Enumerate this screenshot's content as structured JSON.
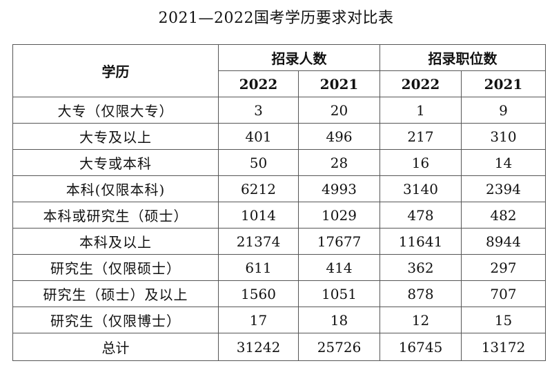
{
  "title": "2021—2022国考学历要求对比表",
  "headers": {
    "education": "学历",
    "group_hires": "招录人数",
    "group_positions": "招录职位数",
    "years": [
      "2022",
      "2021",
      "2022",
      "2021"
    ]
  },
  "rows": [
    {
      "edu": "大专（仅限大专）",
      "hires_2022": "3",
      "hires_2021": "20",
      "pos_2022": "1",
      "pos_2021": "9"
    },
    {
      "edu": "大专及以上",
      "hires_2022": "401",
      "hires_2021": "496",
      "pos_2022": "217",
      "pos_2021": "310"
    },
    {
      "edu": "大专或本科",
      "hires_2022": "50",
      "hires_2021": "28",
      "pos_2022": "16",
      "pos_2021": "14"
    },
    {
      "edu": "本科(仅限本科)",
      "hires_2022": "6212",
      "hires_2021": "4993",
      "pos_2022": "3140",
      "pos_2021": "2394"
    },
    {
      "edu": "本科或研究生（硕士）",
      "hires_2022": "1014",
      "hires_2021": "1029",
      "pos_2022": "478",
      "pos_2021": "482"
    },
    {
      "edu": "本科及以上",
      "hires_2022": "21374",
      "hires_2021": "17677",
      "pos_2022": "11641",
      "pos_2021": "8944"
    },
    {
      "edu": "研究生（仅限硕士）",
      "hires_2022": "611",
      "hires_2021": "414",
      "pos_2022": "362",
      "pos_2021": "297"
    },
    {
      "edu": "研究生（硕士）及以上",
      "hires_2022": "1560",
      "hires_2021": "1051",
      "pos_2022": "878",
      "pos_2021": "707"
    },
    {
      "edu": "研究生（仅限博士）",
      "hires_2022": "17",
      "hires_2021": "18",
      "pos_2022": "12",
      "pos_2021": "15"
    }
  ],
  "total": {
    "edu": "总计",
    "hires_2022": "31242",
    "hires_2021": "25726",
    "pos_2022": "16745",
    "pos_2021": "13172"
  }
}
